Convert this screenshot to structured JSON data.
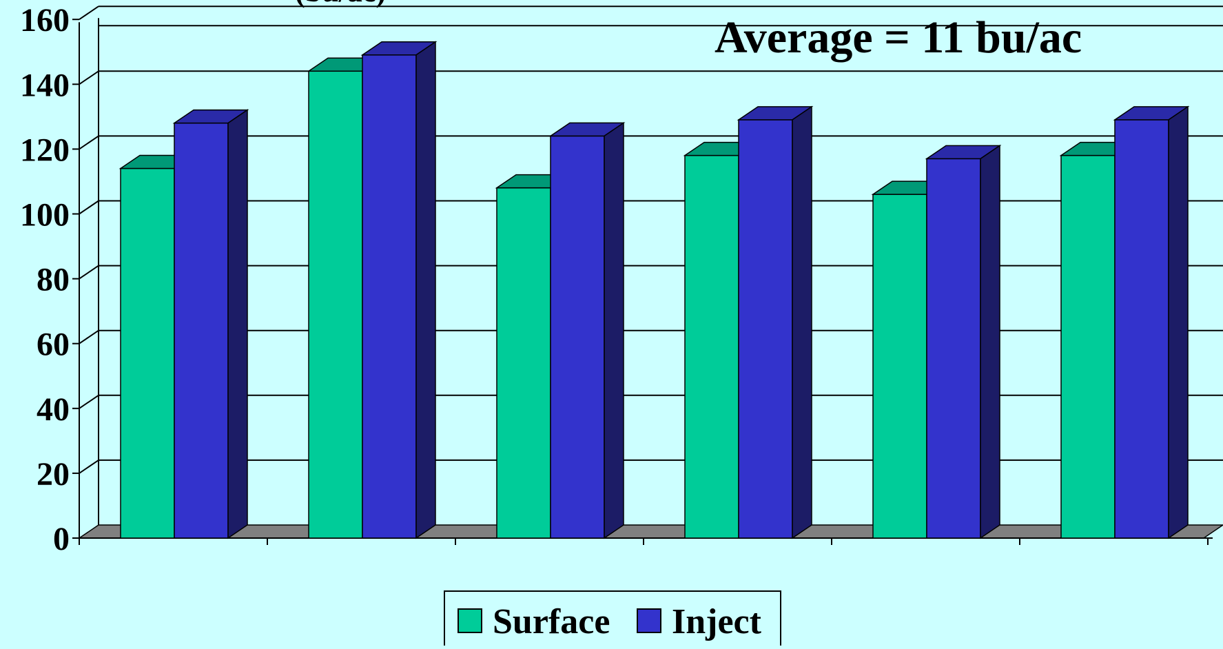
{
  "chart_data": {
    "type": "bar",
    "title": "",
    "partial_ylabel": "(bu/ac)",
    "annotation": "Average = 11 bu/ac",
    "categories": [
      "",
      "",
      "",
      "",
      "",
      ""
    ],
    "series": [
      {
        "name": "Surface",
        "values": [
          110,
          140,
          104,
          114,
          102,
          114
        ],
        "color": "#00cc99",
        "top_color": "#009977",
        "side_color": "#00664f"
      },
      {
        "name": "Inject",
        "values": [
          124,
          145,
          120,
          125,
          113,
          125
        ],
        "color": "#3333cc",
        "top_color": "#2a2aa8",
        "side_color": "#1c1c66"
      }
    ],
    "ylim": [
      0,
      160
    ],
    "yticks": [
      "0",
      "20",
      "40",
      "60",
      "80",
      "100",
      "120",
      "140",
      "160"
    ],
    "grid": true,
    "legend_position": "bottom-center",
    "background_color": "#ccffff",
    "floor_color": "#808080"
  }
}
